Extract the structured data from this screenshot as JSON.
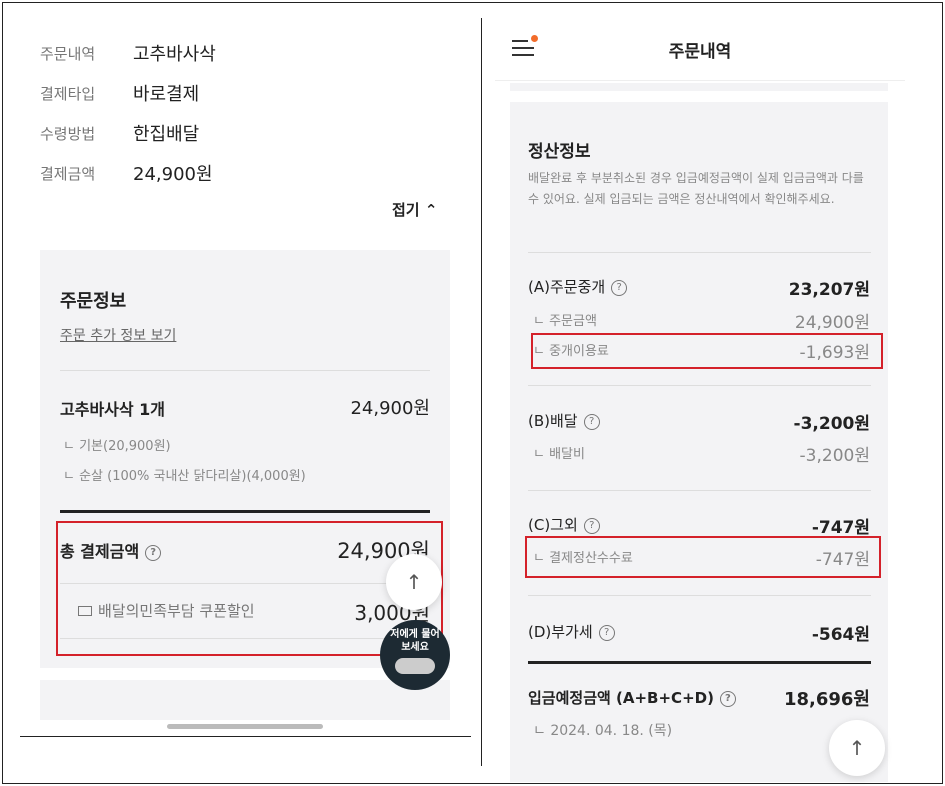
{
  "left": {
    "summary": [
      {
        "label": "주문내역",
        "value": "고추바사삭"
      },
      {
        "label": "결제타입",
        "value": "바로결제"
      },
      {
        "label": "수령방법",
        "value": "한집배달"
      },
      {
        "label": "결제금액",
        "value": "24,900원"
      }
    ],
    "collapse_label": "접기 ⌃",
    "order_info": {
      "title": "주문정보",
      "more_link": "주문 추가 정보 보기",
      "item_name": "고추바사삭 1개",
      "item_price": "24,900원",
      "options": [
        "ㄴ 기본(20,900원)",
        "ㄴ 순살 (100% 국내산 닭다리살)(4,000원)"
      ],
      "total_label": "총 결제금액",
      "total_value": "24,900원",
      "coupon_label": "배달의민족부담 쿠폰할인",
      "coupon_value": "3,000원"
    },
    "chatbot_label": "저에게 물어보세요",
    "scroll_top": "↑"
  },
  "right": {
    "header_title": "주문내역",
    "menu_badge_color": "#f26c2b",
    "settlement": {
      "title": "정산정보",
      "desc": "배달완료 후 부분취소된 경우 입금예정금액이 실제 입금금액과 다를 수 있어요. 실제 입금되는 금액은 정산내역에서 확인해주세요.",
      "a_label": "(A)주문중개",
      "a_value": "23,207원",
      "a_sub1_label": "ㄴ 주문금액",
      "a_sub1_value": "24,900원",
      "a_sub2_label": "ㄴ 중개이용료",
      "a_sub2_value": "-1,693원",
      "b_label": "(B)배달",
      "b_value": "-3,200원",
      "b_sub_label": "ㄴ 배달비",
      "b_sub_value": "-3,200원",
      "c_label": "(C)그외",
      "c_value": "-747원",
      "c_sub_label": "ㄴ 결제정산수수료",
      "c_sub_value": "-747원",
      "d_label": "(D)부가세",
      "d_value": "-564원",
      "total_label": "입금예정금액 (A+B+C+D)",
      "total_value": "18,696원",
      "date": "ㄴ 2024. 04. 18. (목)"
    },
    "scroll_top": "↑"
  },
  "highlight_color": "#d4212a"
}
